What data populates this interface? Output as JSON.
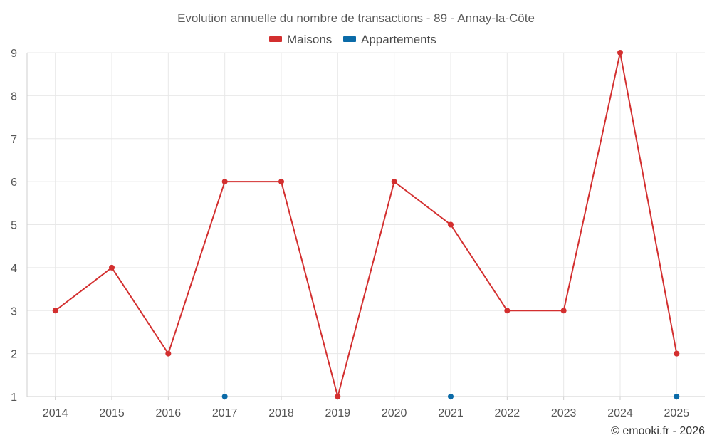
{
  "chart_data": {
    "type": "line",
    "title": "Evolution annuelle du nombre de transactions - 89 - Annay-la-Côte",
    "categories": [
      "2014",
      "2015",
      "2016",
      "2017",
      "2018",
      "2019",
      "2020",
      "2021",
      "2022",
      "2023",
      "2024",
      "2025"
    ],
    "series": [
      {
        "name": "Maisons",
        "color": "#d32f2f",
        "values": [
          3,
          4,
          2,
          6,
          6,
          1,
          6,
          5,
          3,
          3,
          9,
          2
        ],
        "line": true
      },
      {
        "name": "Appartements",
        "color": "#0b6ba8",
        "values": [
          null,
          null,
          null,
          1,
          null,
          null,
          null,
          1,
          null,
          null,
          null,
          1
        ],
        "line": false
      }
    ],
    "ylim": [
      1,
      9
    ],
    "yticks": [
      "1",
      "2",
      "3",
      "4",
      "5",
      "6",
      "7",
      "8",
      "9"
    ],
    "grid": true,
    "legend_position": "top-center",
    "xlabel": "",
    "ylabel": ""
  },
  "credit": "© emooki.fr - 2026"
}
